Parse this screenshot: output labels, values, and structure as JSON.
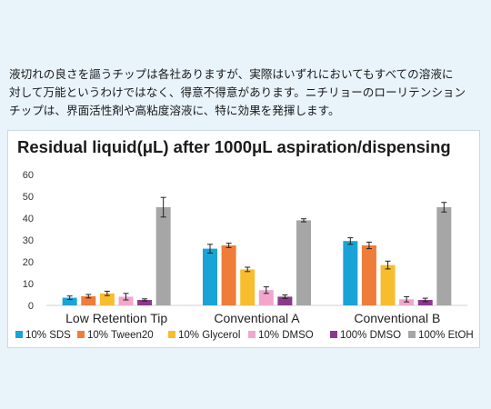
{
  "intro_text": "液切れの良さを謳うチップは各社ありますが、実際はいずれにおいてもすべての溶液に\n対して万能というわけではなく、得意不得意があります。ニチリョーのローリテンション\nチップは、界面活性剤や高粘度溶液に、特に効果を発揮します。",
  "chart_data": {
    "type": "bar",
    "title": "Residual liquid(μL)  after 1000μL aspiration/dispensing",
    "categories": [
      "Low Retention Tip",
      "Conventional A",
      "Conventional B"
    ],
    "ylim": [
      0,
      60
    ],
    "yticks": [
      0,
      10,
      20,
      30,
      40,
      50,
      60
    ],
    "grid": false,
    "legend_position": "bottom",
    "series": [
      {
        "name": "10% SDS",
        "color": "#1aa3d6",
        "values": [
          3.5,
          26,
          29.5
        ],
        "errors": [
          0.8,
          2,
          1.5
        ]
      },
      {
        "name": "10% Tween20",
        "color": "#ef7d3a",
        "values": [
          4.2,
          27.5,
          27.5
        ],
        "errors": [
          0.8,
          1,
          1.5
        ]
      },
      {
        "name": "10% Glycerol",
        "color": "#f8bd2e",
        "values": [
          5.5,
          16.5,
          18.5
        ],
        "errors": [
          1,
          1,
          1.8
        ]
      },
      {
        "name": "10% DMSO",
        "color": "#f2a6cc",
        "values": [
          4,
          7,
          2.8
        ],
        "errors": [
          1.5,
          1.5,
          1.2
        ]
      },
      {
        "name": "100% DMSO",
        "color": "#8a3a8c",
        "values": [
          2.5,
          4,
          2.5
        ],
        "errors": [
          0.5,
          0.8,
          0.8
        ]
      },
      {
        "name": "100% EtOH",
        "color": "#a6a6a6",
        "values": [
          45,
          39,
          45
        ],
        "errors": [
          4.5,
          0.7,
          2.2
        ]
      }
    ]
  }
}
